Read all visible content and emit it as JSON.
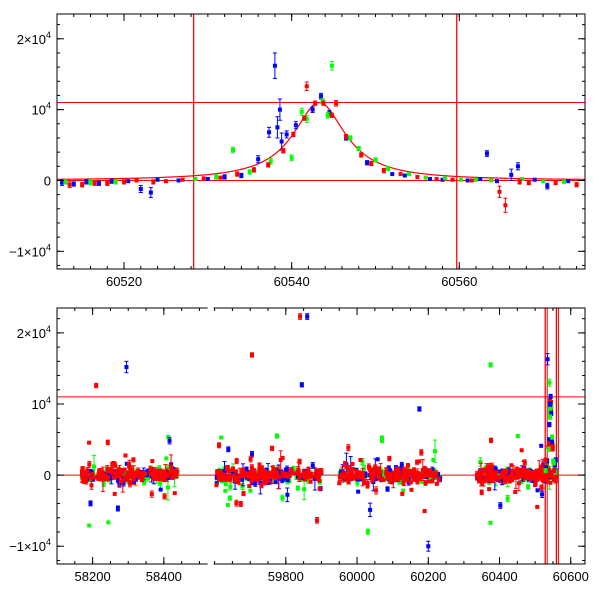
{
  "colors": {
    "blue": "#0000ff",
    "green": "#00ff00",
    "red": "#ff0000",
    "axis": "#000000",
    "fit": "#ff0000"
  },
  "chart_data": [
    {
      "type": "scatter",
      "xlim": [
        60512,
        60575
      ],
      "ylim": [
        -12500,
        23500
      ],
      "xticks": [
        {
          "value": 60520,
          "label": "60520"
        },
        {
          "value": 60540,
          "label": "60540"
        },
        {
          "value": 60560,
          "label": "60560"
        }
      ],
      "yticks": [
        {
          "value": -10000,
          "label": "−1×10",
          "exp": "4"
        },
        {
          "value": 0,
          "label": "0",
          "exp": ""
        },
        {
          "value": 10000,
          "label": "10",
          "exp": "4"
        },
        {
          "value": 20000,
          "label": "2×10",
          "exp": "4"
        }
      ],
      "hlines": [
        0,
        11000
      ],
      "vlines": [
        60528.3,
        60559.7
      ],
      "model": {
        "t0": 60543.3,
        "peak": 11000,
        "tE": 3.8,
        "tmin": 60512,
        "tmax": 60575
      },
      "series": [
        {
          "color": "blue",
          "points": [
            [
              60512.6,
              -300,
              400
            ],
            [
              60514,
              -500,
              300
            ],
            [
              60515.5,
              -200,
              300
            ],
            [
              60517,
              -400,
              300
            ],
            [
              60518.5,
              -100,
              300
            ],
            [
              60520.5,
              -100,
              200
            ],
            [
              60522,
              -1200,
              500
            ],
            [
              60523.2,
              -1700,
              700
            ],
            [
              60524,
              100,
              200
            ],
            [
              60526.5,
              0,
              200
            ],
            [
              60530,
              200,
              200
            ],
            [
              60532,
              500,
              300
            ],
            [
              60534,
              700,
              300
            ],
            [
              60536,
              3000,
              500
            ],
            [
              60537.3,
              6800,
              700
            ],
            [
              60538,
              16200,
              1800
            ],
            [
              60538.3,
              7500,
              1500
            ],
            [
              60538.6,
              10000,
              1500
            ],
            [
              60538.8,
              5500,
              1200
            ],
            [
              60539.4,
              6500,
              500
            ],
            [
              60540.5,
              7800,
              500
            ],
            [
              60542.5,
              10000,
              400
            ],
            [
              60543.5,
              11900,
              400
            ],
            [
              60544.5,
              9500,
              400
            ],
            [
              60546.5,
              6000,
              300
            ],
            [
              60549,
              2500,
              300
            ],
            [
              60552,
              900,
              200
            ],
            [
              60553.5,
              700,
              200
            ],
            [
              60556.5,
              200,
              200
            ],
            [
              60558,
              100,
              200
            ],
            [
              60561,
              0,
              200
            ],
            [
              60562.5,
              200,
              200
            ],
            [
              60563.3,
              3800,
              400
            ],
            [
              60564.5,
              -100,
              200
            ],
            [
              60566.2,
              800,
              800
            ],
            [
              60567,
              2000,
              500
            ],
            [
              60569,
              100,
              200
            ],
            [
              60570.5,
              -800,
              400
            ],
            [
              60573,
              -100,
              200
            ]
          ]
        },
        {
          "color": "green",
          "points": [
            [
              60513,
              -200,
              300
            ],
            [
              60516,
              -300,
              300
            ],
            [
              60519,
              -200,
              300
            ],
            [
              60528.5,
              200,
              200
            ],
            [
              60531,
              500,
              300
            ],
            [
              60533,
              4300,
              400
            ],
            [
              60535,
              1200,
              300
            ],
            [
              60537.5,
              2700,
              400
            ],
            [
              60540,
              3200,
              400
            ],
            [
              60541.2,
              9700,
              500
            ],
            [
              60541.8,
              8700,
              500
            ],
            [
              60543.7,
              11200,
              400
            ],
            [
              60544.3,
              9200,
              400
            ],
            [
              60544.8,
              16200,
              600
            ],
            [
              60547,
              6000,
              300
            ],
            [
              60548,
              4500,
              300
            ],
            [
              60550,
              2900,
              300
            ],
            [
              60551.5,
              1700,
              300
            ],
            [
              60554,
              900,
              200
            ],
            [
              60556,
              400,
              200
            ],
            [
              60558.3,
              300,
              200
            ],
            [
              60560.2,
              100,
              200
            ],
            [
              60562,
              100,
              200
            ],
            [
              60563.8,
              0,
              200
            ],
            [
              60567.5,
              200,
              200
            ],
            [
              60570,
              -100,
              200
            ],
            [
              60572.5,
              -200,
              200
            ]
          ]
        },
        {
          "color": "red",
          "points": [
            [
              60513.5,
              -600,
              400
            ],
            [
              60515,
              -600,
              300
            ],
            [
              60516.5,
              -400,
              300
            ],
            [
              60518,
              -400,
              300
            ],
            [
              60520,
              -200,
              300
            ],
            [
              60521.5,
              0,
              200
            ],
            [
              60523.5,
              -200,
              300
            ],
            [
              60525,
              -100,
              200
            ],
            [
              60527,
              100,
              200
            ],
            [
              60529.5,
              300,
              200
            ],
            [
              60531.5,
              400,
              200
            ],
            [
              60533.5,
              900,
              300
            ],
            [
              60535.5,
              1500,
              300
            ],
            [
              60537.2,
              2200,
              300
            ],
            [
              60539,
              4200,
              300
            ],
            [
              60540.2,
              6500,
              300
            ],
            [
              60541.5,
              8800,
              300
            ],
            [
              60542.8,
              10900,
              300
            ],
            [
              60543.8,
              10900,
              300
            ],
            [
              60544.8,
              9200,
              300
            ],
            [
              60545.3,
              10900,
              400
            ],
            [
              60546.5,
              6200,
              300
            ],
            [
              60548.3,
              3600,
              300
            ],
            [
              60549.5,
              2400,
              300
            ],
            [
              60551,
              1400,
              300
            ],
            [
              60553,
              900,
              200
            ],
            [
              60555,
              500,
              200
            ],
            [
              60557.3,
              200,
              200
            ],
            [
              60559.2,
              100,
              200
            ],
            [
              60561.5,
              0,
              200
            ],
            [
              60541.8,
              13300,
              600
            ],
            [
              60564.8,
              -1600,
              800
            ],
            [
              60565.5,
              -3500,
              1000
            ],
            [
              60567.2,
              -200,
              300
            ],
            [
              60568.3,
              -300,
              300
            ],
            [
              60571.5,
              -300,
              300
            ],
            [
              60574,
              -600,
              300
            ]
          ]
        }
      ]
    },
    {
      "type": "scatter",
      "xlim": [
        58100,
        60640
      ],
      "ylim": [
        -12500,
        23500
      ],
      "xticks": [
        {
          "value": 58200,
          "label": "58200"
        },
        {
          "value": 58400,
          "label": "58400"
        },
        {
          "value": 59800,
          "label": "59800"
        },
        {
          "value": 60000,
          "label": "60000"
        },
        {
          "value": 60200,
          "label": "60200"
        },
        {
          "value": 60400,
          "label": "60400"
        },
        {
          "value": 60600,
          "label": "60600"
        }
      ],
      "yticks": [
        {
          "value": -10000,
          "label": "−1×10",
          "exp": "4"
        },
        {
          "value": 0,
          "label": "0",
          "exp": ""
        },
        {
          "value": 10000,
          "label": "10",
          "exp": "4"
        },
        {
          "value": 20000,
          "label": "2×10",
          "exp": "4"
        }
      ],
      "hlines": [
        0,
        11000
      ],
      "vlines": [
        60528.3,
        60559.7
      ],
      "axis_breaks": [
        {
          "from": 58520,
          "to": 59600
        }
      ],
      "season_ranges": [
        [
          58170,
          58440
        ],
        [
          59605,
          59900
        ],
        [
          59950,
          60235
        ],
        [
          60335,
          60560
        ]
      ],
      "peak": {
        "t0": 60543.3,
        "peak": 11000,
        "width": 4
      },
      "outliers": [
        {
          "color": "red",
          "points": [
            [
              58210,
              12600,
              300
            ],
            [
              59705,
              16900,
              300
            ],
            [
              59840,
              22300,
              400
            ]
          ]
        },
        {
          "color": "blue",
          "points": [
            [
              58295,
              15200,
              800
            ],
            [
              59845,
              12700,
              300
            ],
            [
              59860,
              22300,
              400
            ],
            [
              60175,
              9300,
              300
            ],
            [
              60535,
              16300,
              800
            ],
            [
              60200,
              -10000,
              700
            ]
          ]
        },
        {
          "color": "green",
          "points": [
            [
              60375,
              15500,
              300
            ],
            [
              60540,
              13000,
              500
            ],
            [
              59775,
              5500,
              300
            ],
            [
              60070,
              5200,
              300
            ]
          ]
        }
      ]
    }
  ]
}
